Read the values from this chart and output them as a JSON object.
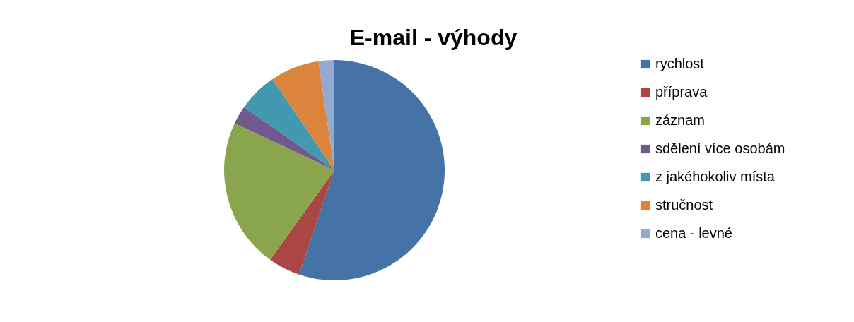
{
  "chart_data": {
    "type": "pie",
    "title": "E-mail - výhody",
    "categories": [
      "rychlost",
      "příprava",
      "záznam",
      "sdělení více osobám",
      "z jakéhokoliv místa",
      "stručnost",
      "cena - levné"
    ],
    "values": [
      55.2,
      4.7,
      22.1,
      2.7,
      5.8,
      7.2,
      2.3
    ],
    "colors": [
      "#4572a7",
      "#aa4643",
      "#89a54e",
      "#71588f",
      "#4198af",
      "#db843d",
      "#93a9cf"
    ],
    "legend": "right"
  }
}
